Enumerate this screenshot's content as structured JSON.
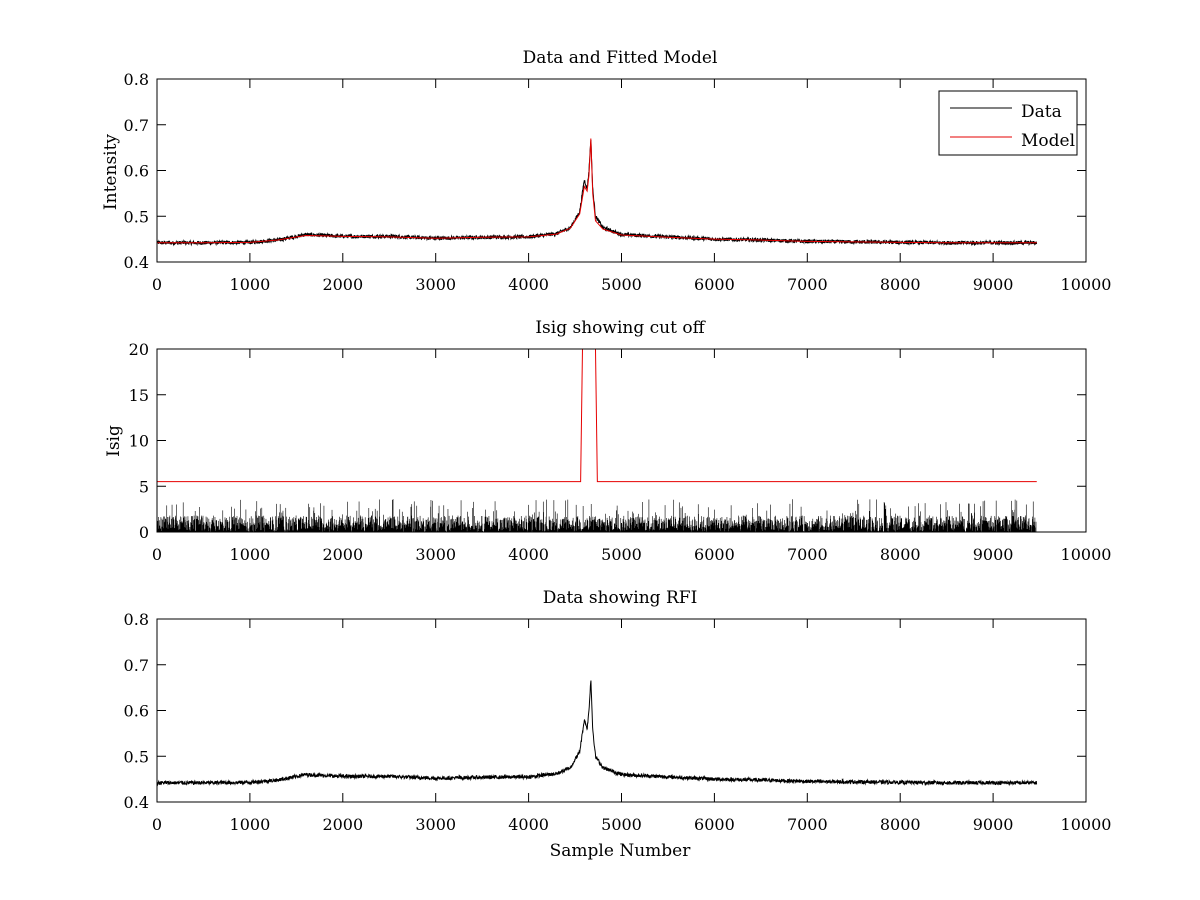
{
  "figure": {
    "background": "#ffffff"
  },
  "colors": {
    "data": "#000000",
    "model": "#e60000",
    "axis": "#000000"
  },
  "chart_data": [
    {
      "type": "line",
      "title": "Data and Fitted Model",
      "xlabel": "",
      "ylabel": "Intensity",
      "xlim": [
        0,
        10000
      ],
      "ylim": [
        0.4,
        0.8
      ],
      "xticks": [
        0,
        1000,
        2000,
        3000,
        4000,
        5000,
        6000,
        7000,
        8000,
        9000,
        10000
      ],
      "yticks": [
        0.4,
        0.5,
        0.6,
        0.7,
        0.8
      ],
      "grid": false,
      "legend": {
        "position": "top-right",
        "entries": [
          "Data",
          "Model"
        ]
      },
      "series": [
        {
          "name": "Data",
          "color": "#000000",
          "x": [
            0,
            500,
            1000,
            1300,
            1600,
            1800,
            2000,
            2500,
            3000,
            3500,
            4000,
            4300,
            4450,
            4550,
            4600,
            4630,
            4650,
            4670,
            4690,
            4720,
            4800,
            5000,
            5500,
            6000,
            6500,
            7000,
            7500,
            8000,
            8500,
            9000,
            9470
          ],
          "y": [
            0.442,
            0.442,
            0.443,
            0.448,
            0.46,
            0.458,
            0.456,
            0.456,
            0.452,
            0.454,
            0.455,
            0.462,
            0.475,
            0.51,
            0.58,
            0.56,
            0.6,
            0.67,
            0.56,
            0.5,
            0.475,
            0.46,
            0.455,
            0.45,
            0.448,
            0.445,
            0.444,
            0.443,
            0.442,
            0.442,
            0.442
          ],
          "noise": 0.004
        },
        {
          "name": "Model",
          "color": "#e60000",
          "x": [
            0,
            500,
            1000,
            1300,
            1600,
            1800,
            2000,
            2500,
            3000,
            3500,
            4000,
            4300,
            4450,
            4550,
            4600,
            4630,
            4650,
            4670,
            4690,
            4720,
            4800,
            5000,
            5500,
            6000,
            6500,
            7000,
            7500,
            8000,
            8500,
            9000,
            9470
          ],
          "y": [
            0.442,
            0.442,
            0.443,
            0.448,
            0.458,
            0.457,
            0.456,
            0.455,
            0.452,
            0.454,
            0.455,
            0.461,
            0.474,
            0.505,
            0.565,
            0.555,
            0.59,
            0.67,
            0.55,
            0.49,
            0.472,
            0.459,
            0.454,
            0.45,
            0.448,
            0.445,
            0.444,
            0.443,
            0.442,
            0.442,
            0.442
          ]
        }
      ]
    },
    {
      "type": "line",
      "title": "Isig showing cut off",
      "xlabel": "",
      "ylabel": "Isig",
      "xlim": [
        0,
        10000
      ],
      "ylim": [
        0,
        20
      ],
      "xticks": [
        0,
        1000,
        2000,
        3000,
        4000,
        5000,
        6000,
        7000,
        8000,
        9000,
        10000
      ],
      "yticks": [
        0,
        5,
        10,
        15,
        20
      ],
      "grid": false,
      "series": [
        {
          "color": "#000000",
          "kind": "noise-band",
          "x_range": [
            0,
            9470
          ],
          "typical_max": 1.8,
          "peak_max": 3.6
        },
        {
          "color": "#e60000",
          "x": [
            0,
            4560,
            4580,
            4720,
            4740,
            9470
          ],
          "y": [
            5.5,
            5.5,
            20,
            20,
            5.5,
            5.5
          ]
        }
      ]
    },
    {
      "type": "line",
      "title": "Data showing RFI",
      "xlabel": "Sample Number",
      "ylabel": "",
      "xlim": [
        0,
        10000
      ],
      "ylim": [
        0.4,
        0.8
      ],
      "xticks": [
        0,
        1000,
        2000,
        3000,
        4000,
        5000,
        6000,
        7000,
        8000,
        9000,
        10000
      ],
      "yticks": [
        0.4,
        0.5,
        0.6,
        0.7,
        0.8
      ],
      "grid": false,
      "series": [
        {
          "color": "#000000",
          "x": [
            0,
            500,
            1000,
            1300,
            1600,
            1800,
            2000,
            2500,
            3000,
            3500,
            4000,
            4300,
            4450,
            4550,
            4600,
            4630,
            4650,
            4670,
            4690,
            4720,
            4800,
            5000,
            5500,
            6000,
            6500,
            7000,
            7500,
            8000,
            8500,
            9000,
            9470
          ],
          "y": [
            0.442,
            0.442,
            0.443,
            0.448,
            0.46,
            0.458,
            0.456,
            0.456,
            0.452,
            0.454,
            0.455,
            0.462,
            0.475,
            0.51,
            0.58,
            0.56,
            0.6,
            0.67,
            0.56,
            0.5,
            0.475,
            0.46,
            0.455,
            0.45,
            0.448,
            0.445,
            0.444,
            0.443,
            0.442,
            0.442,
            0.442
          ],
          "noise": 0.004
        }
      ]
    }
  ]
}
